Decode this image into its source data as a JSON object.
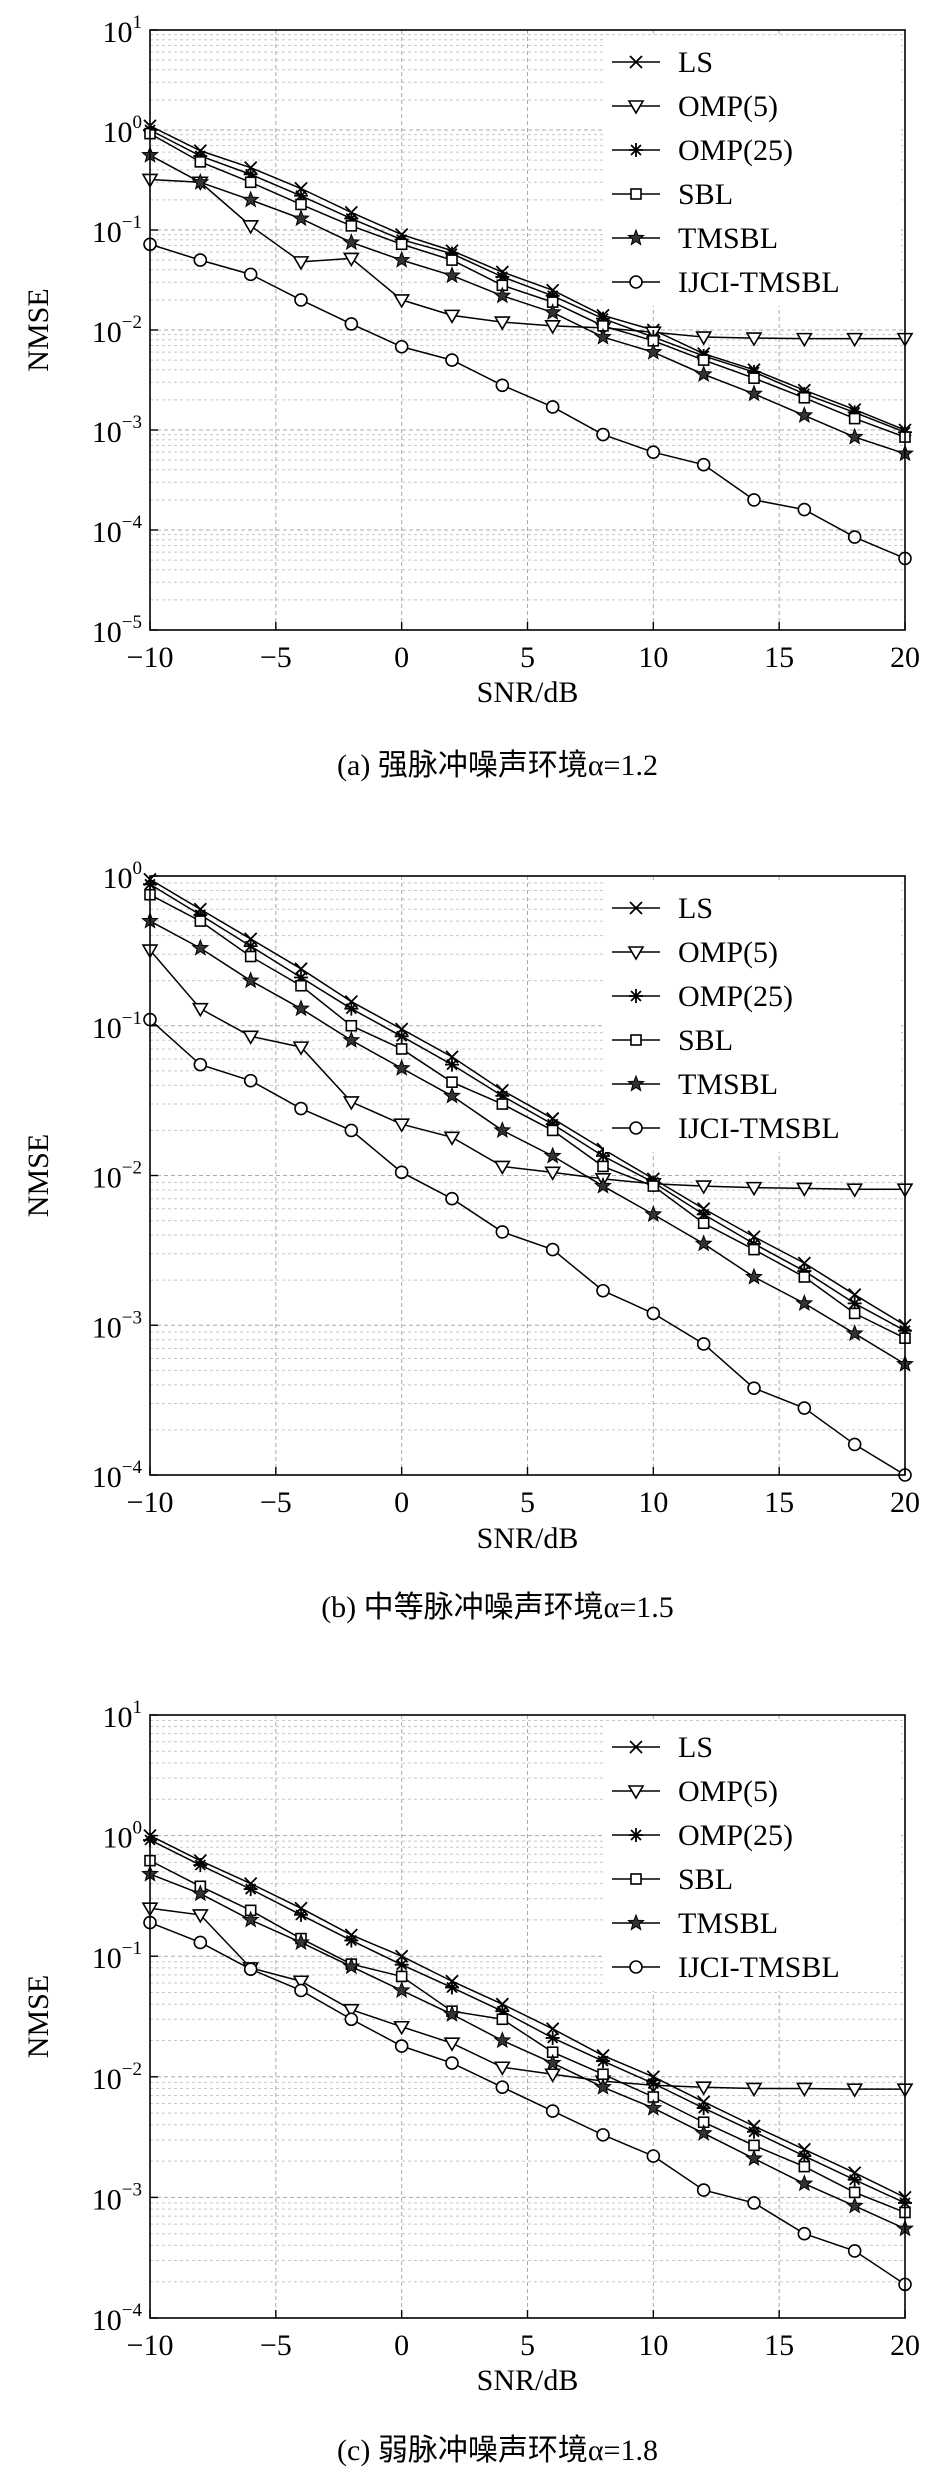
{
  "chart_data": [
    {
      "type": "line",
      "panel_id": "a",
      "caption": "(a) 强脉冲噪声环境α=1.2",
      "xlabel": "SNR/dB",
      "ylabel": "NMSE",
      "xlim": [
        -10,
        20
      ],
      "ylim": [
        1e-05,
        10
      ],
      "yscale": "log",
      "grid": true,
      "legend_position": "top-right",
      "x_ticks": [
        "−10",
        "−5",
        "0",
        "5",
        "10",
        "15",
        "20"
      ],
      "y_ticks": [
        {
          "base": "10",
          "exp": "1"
        },
        {
          "base": "10",
          "exp": "0"
        },
        {
          "base": "10",
          "exp": "−1"
        },
        {
          "base": "10",
          "exp": "−2"
        },
        {
          "base": "10",
          "exp": "−3"
        },
        {
          "base": "10",
          "exp": "−4"
        },
        {
          "base": "10",
          "exp": "−5"
        }
      ],
      "x": [
        -10,
        -8,
        -6,
        -4,
        -2,
        0,
        2,
        4,
        6,
        8,
        10,
        12,
        14,
        16,
        18,
        20
      ],
      "series": [
        {
          "name": "LS",
          "marker": "x",
          "values": [
            1.1,
            0.62,
            0.42,
            0.26,
            0.15,
            0.09,
            0.062,
            0.038,
            0.025,
            0.014,
            0.01,
            0.0058,
            0.004,
            0.0025,
            0.0016,
            0.001
          ]
        },
        {
          "name": "OMP(5)",
          "marker": "triangle-down",
          "values": [
            0.32,
            0.3,
            0.11,
            0.048,
            0.052,
            0.02,
            0.014,
            0.012,
            0.011,
            0.0105,
            0.0095,
            0.0085,
            0.0083,
            0.0082,
            0.0082,
            0.0082
          ]
        },
        {
          "name": "OMP(25)",
          "marker": "asterisk",
          "values": [
            1.0,
            0.55,
            0.36,
            0.22,
            0.13,
            0.08,
            0.058,
            0.034,
            0.022,
            0.013,
            0.0085,
            0.0055,
            0.0038,
            0.0023,
            0.0015,
            0.00095
          ]
        },
        {
          "name": "SBL",
          "marker": "square",
          "values": [
            0.92,
            0.48,
            0.3,
            0.18,
            0.11,
            0.072,
            0.05,
            0.028,
            0.019,
            0.011,
            0.0078,
            0.005,
            0.0033,
            0.0021,
            0.0013,
            0.00085
          ]
        },
        {
          "name": "TMSBL",
          "marker": "star",
          "values": [
            0.56,
            0.3,
            0.2,
            0.13,
            0.075,
            0.05,
            0.035,
            0.022,
            0.015,
            0.0085,
            0.006,
            0.0036,
            0.0023,
            0.0014,
            0.00085,
            0.00058
          ]
        },
        {
          "name": "IJCI-TMSBL",
          "marker": "circle",
          "values": [
            0.072,
            0.05,
            0.036,
            0.02,
            0.0115,
            0.0068,
            0.005,
            0.0028,
            0.0017,
            0.0009,
            0.0006,
            0.00045,
            0.0002,
            0.00016,
            8.5e-05,
            5.2e-05
          ]
        }
      ]
    },
    {
      "type": "line",
      "panel_id": "b",
      "caption": "(b) 中等脉冲噪声环境α=1.5",
      "xlabel": "SNR/dB",
      "ylabel": "NMSE",
      "xlim": [
        -10,
        20
      ],
      "ylim": [
        0.0001,
        1
      ],
      "yscale": "log",
      "grid": true,
      "legend_position": "top-right",
      "x_ticks": [
        "−10",
        "−5",
        "0",
        "5",
        "10",
        "15",
        "20"
      ],
      "y_ticks": [
        {
          "base": "10",
          "exp": "0"
        },
        {
          "base": "10",
          "exp": "−1"
        },
        {
          "base": "10",
          "exp": "−2"
        },
        {
          "base": "10",
          "exp": "−3"
        },
        {
          "base": "10",
          "exp": "−4"
        }
      ],
      "x": [
        -10,
        -8,
        -6,
        -4,
        -2,
        0,
        2,
        4,
        6,
        8,
        10,
        12,
        14,
        16,
        18,
        20
      ],
      "series": [
        {
          "name": "LS",
          "marker": "x",
          "values": [
            0.95,
            0.6,
            0.38,
            0.24,
            0.145,
            0.095,
            0.062,
            0.037,
            0.024,
            0.015,
            0.0095,
            0.006,
            0.0039,
            0.0026,
            0.0016,
            0.001
          ]
        },
        {
          "name": "OMP(5)",
          "marker": "triangle-down",
          "values": [
            0.32,
            0.13,
            0.085,
            0.072,
            0.031,
            0.022,
            0.018,
            0.0115,
            0.0105,
            0.0095,
            0.0088,
            0.0085,
            0.0083,
            0.0082,
            0.0081,
            0.0081
          ]
        },
        {
          "name": "OMP(25)",
          "marker": "asterisk",
          "values": [
            0.88,
            0.55,
            0.34,
            0.21,
            0.13,
            0.085,
            0.055,
            0.034,
            0.022,
            0.0135,
            0.009,
            0.0055,
            0.0035,
            0.0023,
            0.0014,
            0.00092
          ]
        },
        {
          "name": "SBL",
          "marker": "square",
          "values": [
            0.75,
            0.5,
            0.29,
            0.185,
            0.1,
            0.07,
            0.042,
            0.03,
            0.02,
            0.0115,
            0.0085,
            0.0048,
            0.0032,
            0.0021,
            0.0012,
            0.00082
          ]
        },
        {
          "name": "TMSBL",
          "marker": "star",
          "values": [
            0.5,
            0.33,
            0.2,
            0.13,
            0.08,
            0.052,
            0.034,
            0.02,
            0.0135,
            0.0085,
            0.0055,
            0.0035,
            0.0021,
            0.0014,
            0.00088,
            0.00055
          ]
        },
        {
          "name": "IJCI-TMSBL",
          "marker": "circle",
          "values": [
            0.11,
            0.055,
            0.043,
            0.028,
            0.02,
            0.0105,
            0.007,
            0.0042,
            0.0032,
            0.0017,
            0.0012,
            0.00075,
            0.00038,
            0.00028,
            0.00016,
            0.0001
          ]
        }
      ]
    },
    {
      "type": "line",
      "panel_id": "c",
      "caption": "(c) 弱脉冲噪声环境α=1.8",
      "xlabel": "SNR/dB",
      "ylabel": "NMSE",
      "xlim": [
        -10,
        20
      ],
      "ylim": [
        0.0001,
        10
      ],
      "yscale": "log",
      "grid": true,
      "legend_position": "top-right",
      "x_ticks": [
        "−10",
        "−5",
        "0",
        "5",
        "10",
        "15",
        "20"
      ],
      "y_ticks": [
        {
          "base": "10",
          "exp": "1"
        },
        {
          "base": "10",
          "exp": "0"
        },
        {
          "base": "10",
          "exp": "−1"
        },
        {
          "base": "10",
          "exp": "−2"
        },
        {
          "base": "10",
          "exp": "−3"
        },
        {
          "base": "10",
          "exp": "−4"
        }
      ],
      "x": [
        -10,
        -8,
        -6,
        -4,
        -2,
        0,
        2,
        4,
        6,
        8,
        10,
        12,
        14,
        16,
        18,
        20
      ],
      "series": [
        {
          "name": "LS",
          "marker": "x",
          "values": [
            1.0,
            0.62,
            0.4,
            0.25,
            0.15,
            0.1,
            0.062,
            0.04,
            0.025,
            0.015,
            0.01,
            0.0062,
            0.0039,
            0.0025,
            0.0016,
            0.001
          ]
        },
        {
          "name": "OMP(5)",
          "marker": "triangle-down",
          "values": [
            0.25,
            0.22,
            0.08,
            0.062,
            0.036,
            0.026,
            0.019,
            0.012,
            0.0105,
            0.0092,
            0.0085,
            0.0082,
            0.008,
            0.008,
            0.0079,
            0.0079
          ]
        },
        {
          "name": "OMP(25)",
          "marker": "asterisk",
          "values": [
            0.92,
            0.57,
            0.36,
            0.22,
            0.135,
            0.085,
            0.055,
            0.035,
            0.021,
            0.0135,
            0.0088,
            0.0055,
            0.0035,
            0.0022,
            0.0014,
            0.0009
          ]
        },
        {
          "name": "SBL",
          "marker": "square",
          "values": [
            0.62,
            0.38,
            0.24,
            0.14,
            0.086,
            0.068,
            0.035,
            0.03,
            0.016,
            0.0105,
            0.0068,
            0.0042,
            0.0027,
            0.0018,
            0.0011,
            0.00075
          ]
        },
        {
          "name": "TMSBL",
          "marker": "star",
          "values": [
            0.48,
            0.33,
            0.2,
            0.13,
            0.082,
            0.052,
            0.033,
            0.02,
            0.013,
            0.0082,
            0.0055,
            0.0034,
            0.0021,
            0.0013,
            0.00085,
            0.00055
          ]
        },
        {
          "name": "IJCI-TMSBL",
          "marker": "circle",
          "values": [
            0.19,
            0.13,
            0.078,
            0.052,
            0.03,
            0.018,
            0.013,
            0.0082,
            0.0052,
            0.0033,
            0.0022,
            0.00115,
            0.0009,
            0.0005,
            0.00036,
            0.00019
          ]
        }
      ]
    }
  ]
}
